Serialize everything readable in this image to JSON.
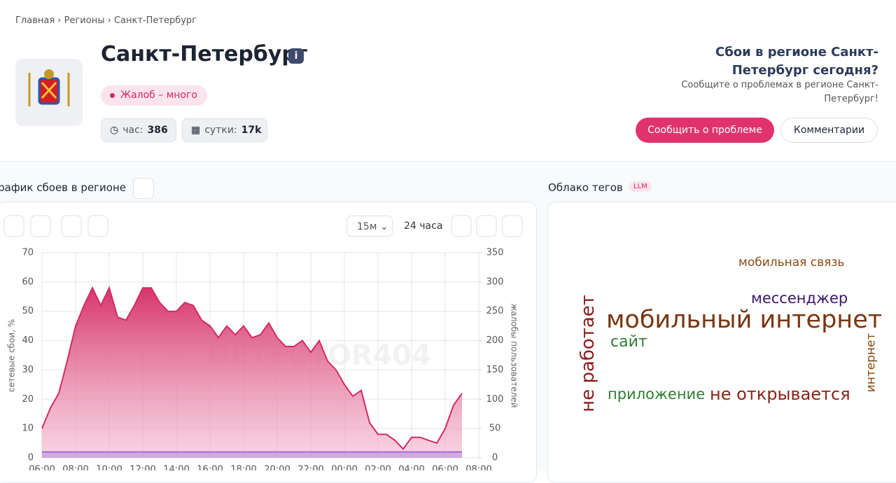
{
  "page": {
    "breadcrumbs": [
      "Главная",
      "Регионы",
      "Санкт-Петербург"
    ],
    "title": "Санкт-Петербург",
    "badge": "Жалоб – много",
    "stats": [
      {
        "label": "час:",
        "value": "386"
      },
      {
        "label": "сутки:",
        "value": "17k"
      }
    ],
    "cta_title": "Сбои в регионе Санкт-Петербург сегодня?",
    "cta_text": "Сообщите о проблемах в регионе Санкт-Петербург!",
    "buttons": [
      "Сообщить о проблеме",
      "Комментарии"
    ],
    "chart_title": "График сбоев в регионе",
    "interval": "15м",
    "period": "24 часа"
  },
  "tag_cloud": {
    "title": "Облако тегов",
    "badge": "LLM",
    "tags": [
      {
        "text": "мобильная связь",
        "color": "#8a4b12"
      },
      {
        "text": "мессенджер",
        "color": "#3b1670"
      },
      {
        "text": "мобильный интернет",
        "color": "#7a3510"
      },
      {
        "text": "сайт",
        "color": "#2e7d32"
      },
      {
        "text": "не работает",
        "color": "#8b1c1c"
      },
      {
        "text": "приложение",
        "color": "#2e7d32"
      },
      {
        "text": "не открывается",
        "color": "#8b2218"
      },
      {
        "text": "интернет",
        "color": "#8a4b12"
      }
    ]
  },
  "chart_data": {
    "type": "line",
    "watermark": "DETECTOR404",
    "ylabel": "сетевые сбои, %",
    "y2label": "жалобы пользователей",
    "categories": [
      "06:00",
      null,
      null,
      null,
      "08:00",
      null,
      null,
      null,
      "10:00",
      null,
      null,
      null,
      "12:00",
      null,
      null,
      null,
      "14:00",
      null,
      null,
      null,
      "16:00",
      null,
      null,
      null,
      "18:00",
      null,
      null,
      null,
      "20:00",
      null,
      null,
      null,
      "22:00",
      null,
      null,
      null,
      "00:00",
      null,
      null,
      null,
      "02:00",
      null,
      null,
      null,
      "04:00",
      null,
      null,
      null,
      "06:00",
      null,
      null,
      null,
      "08:00"
    ],
    "series": [
      {
        "color": "#d42a63",
        "values": [
          10,
          17,
          22,
          33,
          45,
          52,
          58,
          52,
          58,
          48,
          47,
          52,
          58,
          58,
          53,
          50,
          50,
          53,
          52,
          47,
          45,
          41,
          45,
          42,
          45,
          41,
          42,
          46,
          41,
          38,
          38,
          40,
          36,
          40,
          33,
          30,
          25,
          21,
          23,
          12,
          8,
          8,
          6,
          3,
          7,
          7,
          6,
          5,
          10,
          18,
          22,
          null,
          null
        ]
      },
      {
        "color": "#9b6ddb",
        "values": [
          2,
          2,
          2,
          2,
          2,
          2,
          2,
          2,
          2,
          2,
          2,
          2,
          2,
          2,
          2,
          2,
          2,
          2,
          2,
          2,
          2,
          2,
          2,
          2,
          2,
          2,
          2,
          2,
          2,
          2,
          2,
          2,
          2,
          2,
          2,
          2,
          2,
          2,
          2,
          2,
          2,
          2,
          2,
          2,
          2,
          2,
          2,
          2,
          2,
          2,
          2,
          null,
          null
        ]
      }
    ],
    "ylim": [
      0,
      70
    ],
    "yticks": [
      0,
      10,
      20,
      30,
      40,
      50,
      60,
      70
    ],
    "y2lim": [
      0,
      350
    ],
    "y2ticks": [
      0,
      50,
      100,
      150,
      200,
      250,
      300,
      350
    ],
    "grid": true
  }
}
